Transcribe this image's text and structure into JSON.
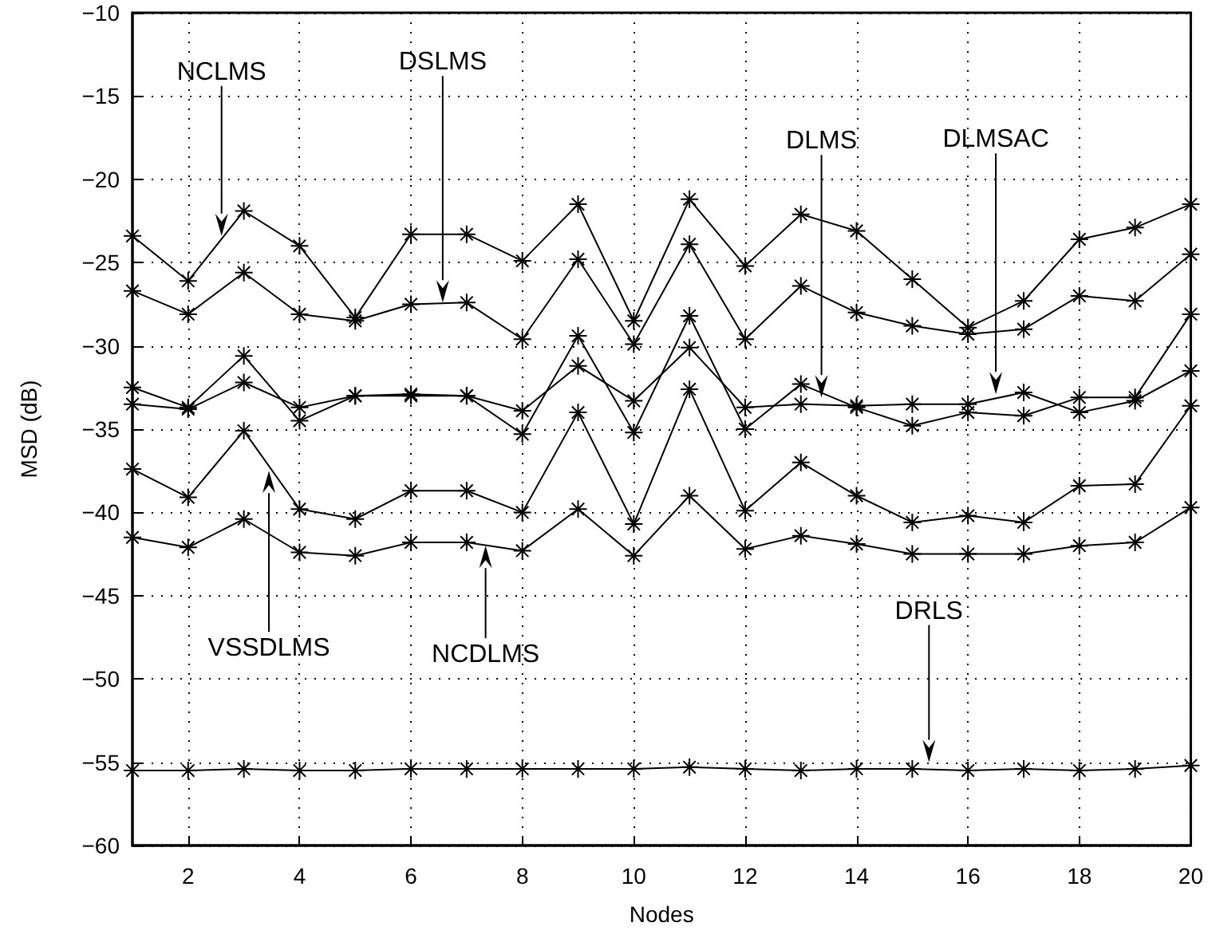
{
  "chart_data": {
    "type": "line",
    "xlabel": "Nodes",
    "ylabel": "MSD (dB)",
    "x": [
      1,
      2,
      3,
      4,
      5,
      6,
      7,
      8,
      9,
      10,
      11,
      12,
      13,
      14,
      15,
      16,
      17,
      18,
      19,
      20
    ],
    "series": [
      {
        "color": "#000000",
        "values": [
          -23.4,
          -26.1,
          -21.9,
          -24.0,
          -28.3,
          -23.3,
          -23.3,
          -24.9,
          -21.5,
          -28.5,
          -21.2,
          -25.2,
          -22.1,
          -23.1,
          -26.0,
          -28.9,
          -27.3,
          -23.6,
          -22.9,
          -21.5
        ]
      },
      {
        "color": "#000000",
        "values": [
          -26.7,
          -28.1,
          -25.6,
          -28.1,
          -28.5,
          -27.5,
          -27.4,
          -29.6,
          -24.8,
          -29.9,
          -23.9,
          -29.6,
          -26.4,
          -28.0,
          -28.8,
          -29.3,
          -29.0,
          -27.0,
          -27.3,
          -24.5
        ]
      },
      {
        "color": "#000000",
        "values": [
          -32.5,
          -33.7,
          -30.6,
          -34.5,
          -33.0,
          -33.0,
          -33.0,
          -35.3,
          -29.4,
          -35.2,
          -28.2,
          -35.0,
          -32.3,
          -33.7,
          -34.8,
          -34.0,
          -34.2,
          -33.1,
          -33.1,
          -28.1
        ]
      },
      {
        "color": "#000000",
        "values": [
          -33.5,
          -33.8,
          -32.2,
          -33.7,
          -33.0,
          -32.9,
          -33.0,
          -33.9,
          -31.2,
          -33.3,
          -30.1,
          -33.7,
          -33.5,
          -33.6,
          -33.5,
          -33.5,
          -32.8,
          -34.0,
          -33.3,
          -31.5
        ]
      },
      {
        "color": "#000000",
        "values": [
          -37.4,
          -39.1,
          -35.1,
          -39.8,
          -40.4,
          -38.7,
          -38.7,
          -40.0,
          -34.0,
          -40.7,
          -32.6,
          -39.9,
          -37.0,
          -39.0,
          -40.6,
          -40.2,
          -40.6,
          -38.4,
          -38.3,
          -33.6
        ]
      },
      {
        "color": "#000000",
        "values": [
          -41.5,
          -42.1,
          -40.4,
          -42.4,
          -42.6,
          -41.8,
          -41.8,
          -42.3,
          -39.8,
          -42.6,
          -39.0,
          -42.2,
          -41.4,
          -41.9,
          -42.5,
          -42.5,
          -42.5,
          -42.0,
          -41.8,
          -39.7
        ]
      },
      {
        "color": "#000000",
        "values": [
          -55.5,
          -55.5,
          -55.4,
          -55.5,
          -55.5,
          -55.4,
          -55.4,
          -55.4,
          -55.4,
          -55.4,
          -55.3,
          -55.4,
          -55.5,
          -55.4,
          -55.4,
          -55.5,
          -55.4,
          -55.5,
          -55.4,
          -55.2
        ]
      }
    ],
    "xlim": [
      1,
      20
    ],
    "xticks": [
      2,
      4,
      6,
      8,
      10,
      12,
      14,
      16,
      18,
      20
    ],
    "ylim": [
      -60,
      -10
    ],
    "yticks": [
      -60,
      -55,
      -50,
      -45,
      -40,
      -35,
      -30,
      -25,
      -20,
      -15,
      -10
    ],
    "grid": true,
    "marker": "cross",
    "line_style": "solid",
    "annotations": [
      "NCLMS",
      "DSLMS",
      "DLMS",
      "DLMSAC",
      "VSSDLMS",
      "NCDLMS",
      "DRLS"
    ]
  }
}
